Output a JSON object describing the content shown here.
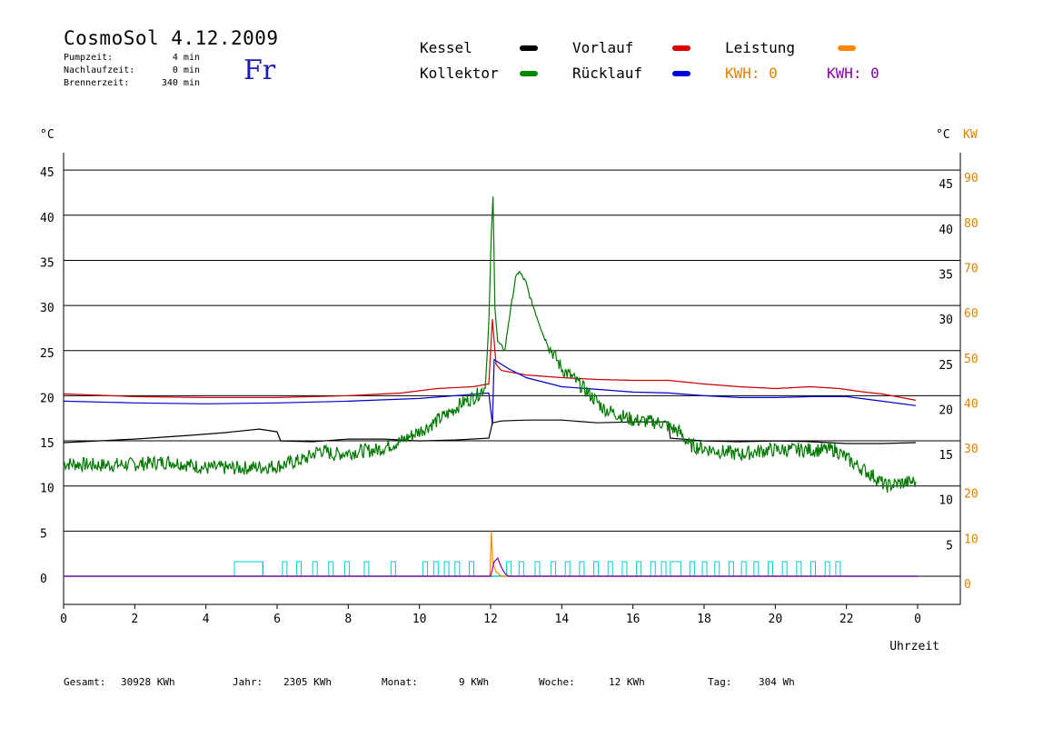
{
  "header": {
    "title": "CosmoSol 4.12.2009",
    "day": "Fr",
    "info": [
      {
        "label": "Pumpzeit:",
        "value": "4 min"
      },
      {
        "label": "Nachlaufzeit:",
        "value": "0 min"
      },
      {
        "label": "Brennerzeit:",
        "value": "340 min"
      }
    ]
  },
  "legend": {
    "items": [
      {
        "label": "Kessel",
        "color": "#000000"
      },
      {
        "label": "Vorlauf",
        "color": "#dd0000"
      },
      {
        "label": "Leistung",
        "color": "#ff8800"
      },
      {
        "label": "Kollektor",
        "color": "#008800"
      },
      {
        "label": "Rücklauf",
        "color": "#0000dd"
      }
    ],
    "kwh_orange": "KWH: 0",
    "kwh_purple": "KWH: 0",
    "kwh_orange_color": "#e08000",
    "kwh_purple_color": "#8800aa"
  },
  "footer": [
    {
      "label": "Gesamt:",
      "value": "30928 KWh"
    },
    {
      "label": "Jahr:",
      "value": "2305 KWh"
    },
    {
      "label": "Monat:",
      "value": "9 KWh"
    },
    {
      "label": "Woche:",
      "value": "12 KWh"
    },
    {
      "label": "Tag:",
      "value": "304 Wh"
    }
  ],
  "chart_data": {
    "type": "line",
    "xlabel": "Uhrzeit",
    "ylabel_left": "°C",
    "ylabel_right": "°C",
    "ylabel_right2": "KW",
    "xlim": [
      0,
      24
    ],
    "ylim": [
      -3,
      47
    ],
    "x_ticks": [
      "0",
      "2",
      "4",
      "6",
      "8",
      "10",
      "12",
      "14",
      "16",
      "18",
      "20",
      "22",
      "0"
    ],
    "y_ticks_left": [
      "0",
      "5",
      "10",
      "15",
      "20",
      "25",
      "30",
      "35",
      "40",
      "45"
    ],
    "y_ticks_right": [
      "5",
      "10",
      "15",
      "20",
      "25",
      "30",
      "35",
      "40",
      "45"
    ],
    "y_ticks_kw": [
      "0",
      "10",
      "20",
      "30",
      "40",
      "50",
      "60",
      "70",
      "80",
      "90"
    ],
    "grid": true,
    "series": [
      {
        "name": "Vorlauf",
        "color": "#cc0000",
        "points": [
          [
            0,
            20.2
          ],
          [
            2,
            19.9
          ],
          [
            4,
            19.8
          ],
          [
            6,
            19.8
          ],
          [
            8,
            20.0
          ],
          [
            9.5,
            20.3
          ],
          [
            10.5,
            20.8
          ],
          [
            11.5,
            21.0
          ],
          [
            11.95,
            21.3
          ],
          [
            12.05,
            28.5
          ],
          [
            12.15,
            23.5
          ],
          [
            12.3,
            22.8
          ],
          [
            13,
            22.3
          ],
          [
            14,
            22.0
          ],
          [
            15,
            21.8
          ],
          [
            16,
            21.7
          ],
          [
            17,
            21.7
          ],
          [
            18,
            21.3
          ],
          [
            19,
            21.0
          ],
          [
            20,
            20.8
          ],
          [
            21,
            21.0
          ],
          [
            21.8,
            20.8
          ],
          [
            22.5,
            20.4
          ],
          [
            23,
            20.2
          ],
          [
            23.95,
            19.5
          ]
        ]
      },
      {
        "name": "Rücklauf",
        "color": "#0000cc",
        "points": [
          [
            0,
            19.4
          ],
          [
            2,
            19.2
          ],
          [
            4,
            19.1
          ],
          [
            6,
            19.2
          ],
          [
            8,
            19.4
          ],
          [
            10,
            19.7
          ],
          [
            11,
            20.0
          ],
          [
            11.95,
            20.3
          ],
          [
            12.05,
            16.8
          ],
          [
            12.1,
            24.0
          ],
          [
            12.5,
            23.0
          ],
          [
            13,
            22.0
          ],
          [
            14,
            21.0
          ],
          [
            15,
            20.7
          ],
          [
            16,
            20.4
          ],
          [
            17,
            20.3
          ],
          [
            18,
            20.0
          ],
          [
            19,
            19.8
          ],
          [
            20,
            19.8
          ],
          [
            21,
            19.9
          ],
          [
            22,
            19.9
          ],
          [
            23,
            19.4
          ],
          [
            23.95,
            18.9
          ]
        ]
      },
      {
        "name": "Kessel",
        "color": "#000000",
        "points": [
          [
            0,
            14.8
          ],
          [
            2,
            15.2
          ],
          [
            3.5,
            15.6
          ],
          [
            4.5,
            15.9
          ],
          [
            5.5,
            16.3
          ],
          [
            6.0,
            16.0
          ],
          [
            6.1,
            15.0
          ],
          [
            7,
            14.9
          ],
          [
            8,
            15.2
          ],
          [
            9,
            15.2
          ],
          [
            10,
            15.0
          ],
          [
            11,
            15.1
          ],
          [
            11.95,
            15.3
          ],
          [
            12.05,
            17.0
          ],
          [
            12.3,
            17.2
          ],
          [
            13,
            17.3
          ],
          [
            14,
            17.3
          ],
          [
            15,
            17.0
          ],
          [
            16,
            17.1
          ],
          [
            17,
            17.1
          ],
          [
            17.05,
            15.3
          ],
          [
            18,
            15.0
          ],
          [
            19,
            14.9
          ],
          [
            20,
            15.0
          ],
          [
            21,
            14.9
          ],
          [
            22,
            14.7
          ],
          [
            23,
            14.7
          ],
          [
            23.95,
            14.8
          ]
        ]
      },
      {
        "name": "Kollektor",
        "color": "#007700",
        "noise": true,
        "points": [
          [
            0,
            12.5
          ],
          [
            1,
            12.3
          ],
          [
            2,
            12.4
          ],
          [
            3,
            12.7
          ],
          [
            4,
            12.0
          ],
          [
            5,
            12.0
          ],
          [
            6,
            12.2
          ],
          [
            6.8,
            13.0
          ],
          [
            7.2,
            14.0
          ],
          [
            7.6,
            13.5
          ],
          [
            8.2,
            13.8
          ],
          [
            8.8,
            14.0
          ],
          [
            9.5,
            15.0
          ],
          [
            10.2,
            16.5
          ],
          [
            10.8,
            18.0
          ],
          [
            11.2,
            19.2
          ],
          [
            11.6,
            20.0
          ],
          [
            11.85,
            21.0
          ],
          [
            11.95,
            28.0
          ],
          [
            12.02,
            38.0
          ],
          [
            12.07,
            42.0
          ],
          [
            12.12,
            30.0
          ],
          [
            12.2,
            26.0
          ],
          [
            12.4,
            25.0
          ],
          [
            12.5,
            28.0
          ],
          [
            12.7,
            33.0
          ],
          [
            12.8,
            33.8
          ],
          [
            13.0,
            32.5
          ],
          [
            13.1,
            31.0
          ],
          [
            13.5,
            26.5
          ],
          [
            14,
            23.0
          ],
          [
            14.3,
            22.0
          ],
          [
            14.7,
            20.5
          ],
          [
            15.2,
            18.5
          ],
          [
            16,
            17.3
          ],
          [
            16.8,
            17.0
          ],
          [
            17.3,
            16.0
          ],
          [
            17.6,
            14.5
          ],
          [
            18.2,
            14.0
          ],
          [
            19,
            13.5
          ],
          [
            19.8,
            14.0
          ],
          [
            20.5,
            14.0
          ],
          [
            21,
            14.0
          ],
          [
            21.7,
            14.0
          ],
          [
            22.2,
            12.5
          ],
          [
            22.8,
            11.0
          ],
          [
            23.1,
            10.0
          ],
          [
            23.5,
            10.3
          ],
          [
            23.95,
            10.5
          ]
        ]
      },
      {
        "name": "Leistung",
        "color": "#ff8800",
        "points": [
          [
            0,
            0
          ],
          [
            11.98,
            0
          ],
          [
            12.02,
            5.0
          ],
          [
            12.06,
            1.5
          ],
          [
            12.15,
            0.5
          ],
          [
            12.3,
            0
          ],
          [
            24,
            0
          ]
        ]
      },
      {
        "name": "",
        "color": "#8800aa",
        "points": [
          [
            0,
            0
          ],
          [
            12.0,
            0
          ],
          [
            12.1,
            1.6
          ],
          [
            12.2,
            2.0
          ],
          [
            12.3,
            1.0
          ],
          [
            12.4,
            0.3
          ],
          [
            12.5,
            0
          ],
          [
            24,
            0
          ]
        ]
      }
    ],
    "pump_ticks": [
      6.15,
      6.55,
      7.0,
      7.45,
      7.9,
      8.45,
      9.2,
      10.1,
      10.4,
      10.7,
      11.0,
      11.4,
      12.45,
      12.8,
      13.25,
      13.7,
      14.1,
      14.5,
      14.9,
      15.3,
      15.7,
      16.1,
      16.5,
      16.8,
      17.6,
      17.95,
      18.3,
      18.7,
      19.05,
      19.4,
      19.8,
      20.2,
      20.6,
      21.0,
      21.4,
      21.7
    ],
    "pump_blocks": [
      [
        4.8,
        5.6
      ],
      [
        17.05,
        17.35
      ]
    ],
    "pump_purple_block": [
      4.8,
      5.6
    ]
  }
}
